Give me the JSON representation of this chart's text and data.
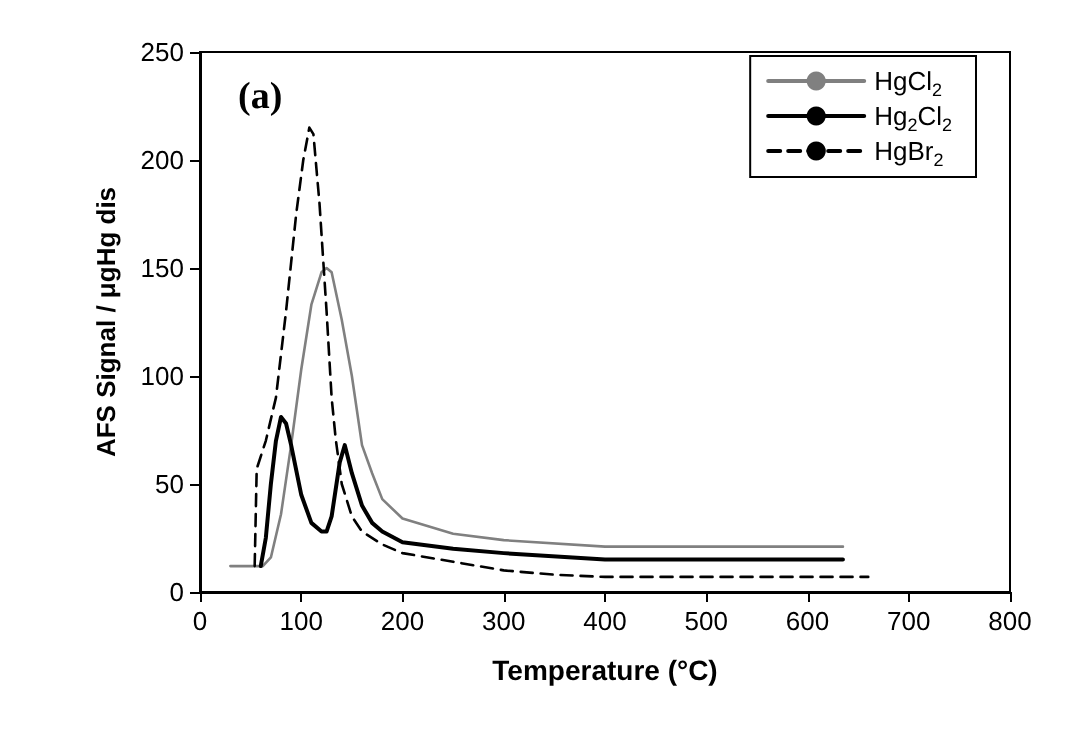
{
  "chart_data": {
    "type": "line",
    "xlabel": "Temperature (°C)",
    "ylabel": "AFS Signal / μgHg dis",
    "annotations": [
      "(a)"
    ],
    "xlim": [
      0,
      800
    ],
    "xticks": [
      0,
      100,
      200,
      300,
      400,
      500,
      600,
      700,
      800
    ],
    "ylim": [
      0,
      250
    ],
    "yticks": [
      0,
      50,
      100,
      150,
      200,
      250
    ],
    "grid": false,
    "legend": "top right",
    "marker": "none",
    "series": [
      {
        "name": "HgCl$_{2}$",
        "color": "#808080",
        "line_style": "solid",
        "x": [
          30,
          55,
          62,
          70,
          80,
          90,
          100,
          110,
          120,
          125,
          130,
          140,
          150,
          160,
          170,
          180,
          200,
          250,
          300,
          400,
          500,
          635
        ],
        "values": [
          12,
          12,
          12,
          16,
          36,
          68,
          103,
          133,
          148,
          150,
          148,
          126,
          100,
          68,
          55,
          43,
          34,
          27,
          24,
          21,
          21,
          21
        ]
      },
      {
        "name": "Hg$_{2}$Cl$_{2}$",
        "color": "#000000",
        "line_style": "solid",
        "x": [
          60,
          65,
          70,
          75,
          80,
          85,
          90,
          100,
          110,
          120,
          125,
          130,
          138,
          143,
          150,
          160,
          170,
          180,
          200,
          250,
          300,
          400,
          635
        ],
        "values": [
          12,
          25,
          50,
          70,
          81,
          78,
          68,
          45,
          32,
          28,
          28,
          35,
          60,
          68,
          55,
          40,
          32,
          28,
          23,
          20,
          18,
          15,
          15
        ]
      },
      {
        "name": "HgBr$_{2}$",
        "color": "#000000",
        "line_style": "dashed",
        "x": [
          54,
          56,
          65,
          75,
          85,
          95,
          102,
          108,
          112,
          118,
          125,
          130,
          134,
          140,
          150,
          160,
          180,
          200,
          250,
          300,
          350,
          400,
          660
        ],
        "values": [
          12,
          57,
          70,
          90,
          130,
          175,
          200,
          215,
          212,
          180,
          130,
          90,
          71,
          50,
          35,
          28,
          22,
          18,
          14,
          10,
          8,
          7,
          7
        ]
      }
    ]
  }
}
